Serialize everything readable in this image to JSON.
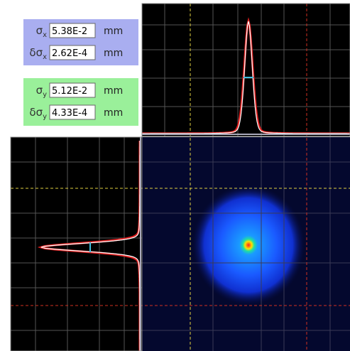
{
  "x_panel": {
    "rows": [
      {
        "symbol": "σ",
        "subscript": "x",
        "value": "5.38E-2",
        "unit": "mm"
      },
      {
        "symbol": "δσ",
        "subscript": "x",
        "value": "2.62E-4",
        "unit": "mm"
      }
    ]
  },
  "y_panel": {
    "rows": [
      {
        "symbol": "σ",
        "subscript": "y",
        "value": "5.12E-2",
        "unit": "mm"
      },
      {
        "symbol": "δσ",
        "subscript": "y",
        "value": "4.33E-4",
        "unit": "mm"
      }
    ]
  }
}
